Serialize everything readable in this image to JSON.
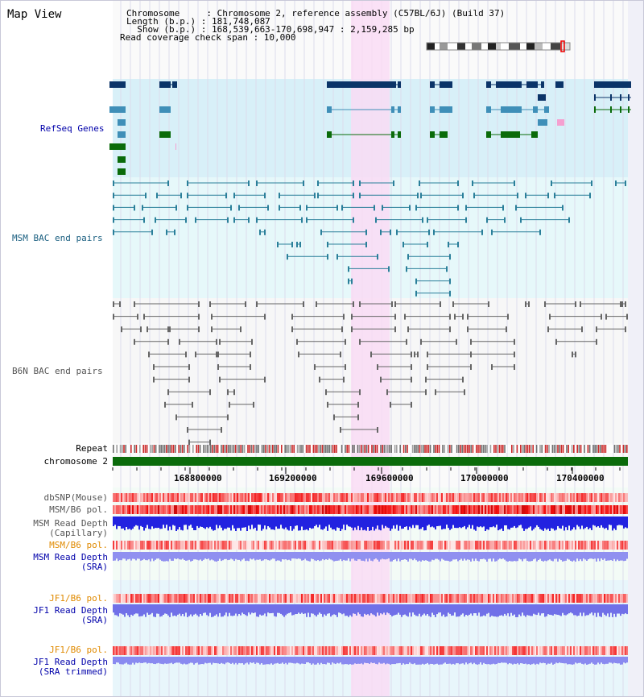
{
  "header": {
    "title": "Map View",
    "info_lines": [
      "Chromosome     : Chromosome 2, reference assembly (C57BL/6J) (Build 37)",
      "Length (b.p.) : 181,748,087",
      "  Show (b.p.) : 168,539,663-170,698,947 : 2,159,285 bp",
      "Read coverage check span : 10,000"
    ]
  },
  "tracks": {
    "refseq": "RefSeq Genes",
    "msm_bac": "MSM BAC end pairs",
    "b6n_bac": "B6N BAC end pairs",
    "repeat": "Repeat",
    "chromosome": "chromosome 2",
    "dbsnp": "dbSNP(Mouse)",
    "msm_b6_pol": "MSM/B6 pol.",
    "msm_depth_cap_1": "MSM Read Depth",
    "msm_depth_cap_2": "(Capillary)",
    "msm_b6_pol_sra": "MSM/B6 pol.",
    "msm_depth_sra_1": "MSM Read Depth",
    "msm_depth_sra_2": "(SRA)",
    "jf1_b6_pol": "JF1/B6 pol.",
    "jf1_depth_sra_1": "JF1 Read Depth",
    "jf1_depth_sra_2": "(SRA)",
    "jf1_b6_pol_trim": "JF1/B6 pol.",
    "jf1_depth_trim_1": "JF1 Read Depth",
    "jf1_depth_trim_2": "(SRA trimmed)"
  },
  "axis": {
    "ticks": [
      "168800000",
      "169200000",
      "169600000",
      "170000000",
      "170400000"
    ]
  },
  "colors": {
    "refseq_dark": "#0b3468",
    "refseq_mid": "#3f8fb8",
    "refseq_green": "#0a6b0a",
    "msm_bac": "#2a7f9a",
    "b6n_bac": "#666666",
    "highlight": "#f9dcf4",
    "label_blue": "#0000aa",
    "label_orange": "#e08a00",
    "label_gray": "#333333",
    "label_teal": "#1a5f80"
  }
}
